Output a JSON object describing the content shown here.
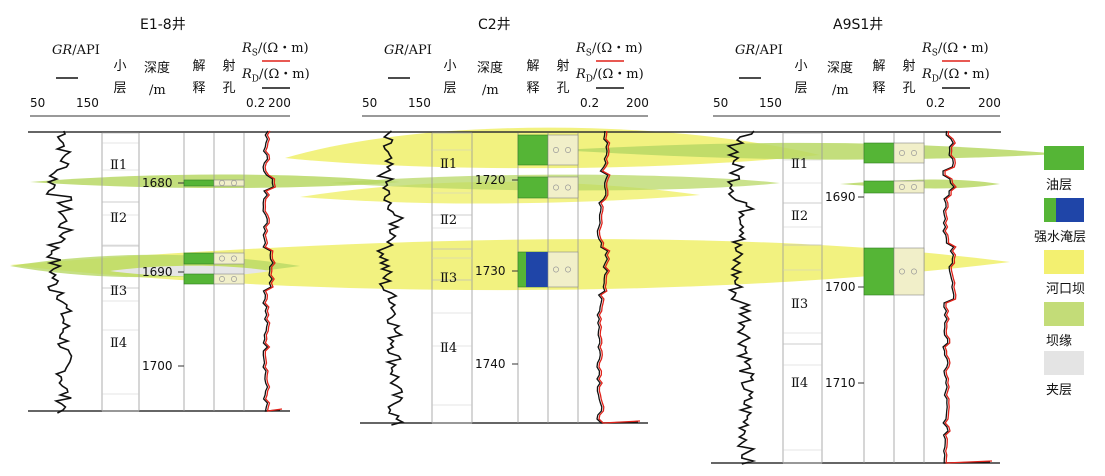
{
  "wells": [
    {
      "name": "E1-8井",
      "depths": [
        "1680",
        "1690",
        "1700"
      ],
      "layers": [
        "Ⅱ1",
        "Ⅱ2",
        "Ⅱ3",
        "Ⅱ4"
      ]
    },
    {
      "name": "C2井",
      "depths": [
        "1720",
        "1730",
        "1740"
      ],
      "layers": [
        "Ⅱ1",
        "Ⅱ2",
        "Ⅱ3",
        "Ⅱ4"
      ]
    },
    {
      "name": "A9S1井",
      "depths": [
        "1690",
        "1700",
        "1710"
      ],
      "layers": [
        "Ⅱ1",
        "Ⅱ2",
        "Ⅱ3",
        "Ⅱ4"
      ]
    }
  ],
  "headers": {
    "gr_name": "GR",
    "gr_unit": "/API",
    "gr_min": "50",
    "gr_max": "150",
    "sublayer": [
      "小",
      "层"
    ],
    "depth": [
      "深度",
      "/m"
    ],
    "interp": [
      "解",
      "释"
    ],
    "perf": [
      "射",
      "孔"
    ],
    "rs": "R",
    "rs_sub": "S",
    "rd": "R",
    "rd_sub": "D",
    "res_unit": "/(Ω・m)",
    "res_min": "0.2",
    "res_max": "200"
  },
  "legend": [
    {
      "label": "油层",
      "colors": [
        "#55b536"
      ]
    },
    {
      "label": "强水淹层",
      "colors": [
        "#55b536",
        "#1f45a8"
      ]
    },
    {
      "label": "河口坝",
      "colors": [
        "#f3f070"
      ]
    },
    {
      "label": "坝缘",
      "colors": [
        "#c3dc78"
      ]
    },
    {
      "label": "夹层",
      "colors": [
        "#e4e4e4"
      ]
    }
  ],
  "colors": {
    "oil": "#55b536",
    "water": "#1f45a8",
    "bar": "#eeee55",
    "edge": "#b8d865",
    "inter": "#e6e6e6",
    "rs": "#e0221a",
    "rd": "#111111"
  }
}
